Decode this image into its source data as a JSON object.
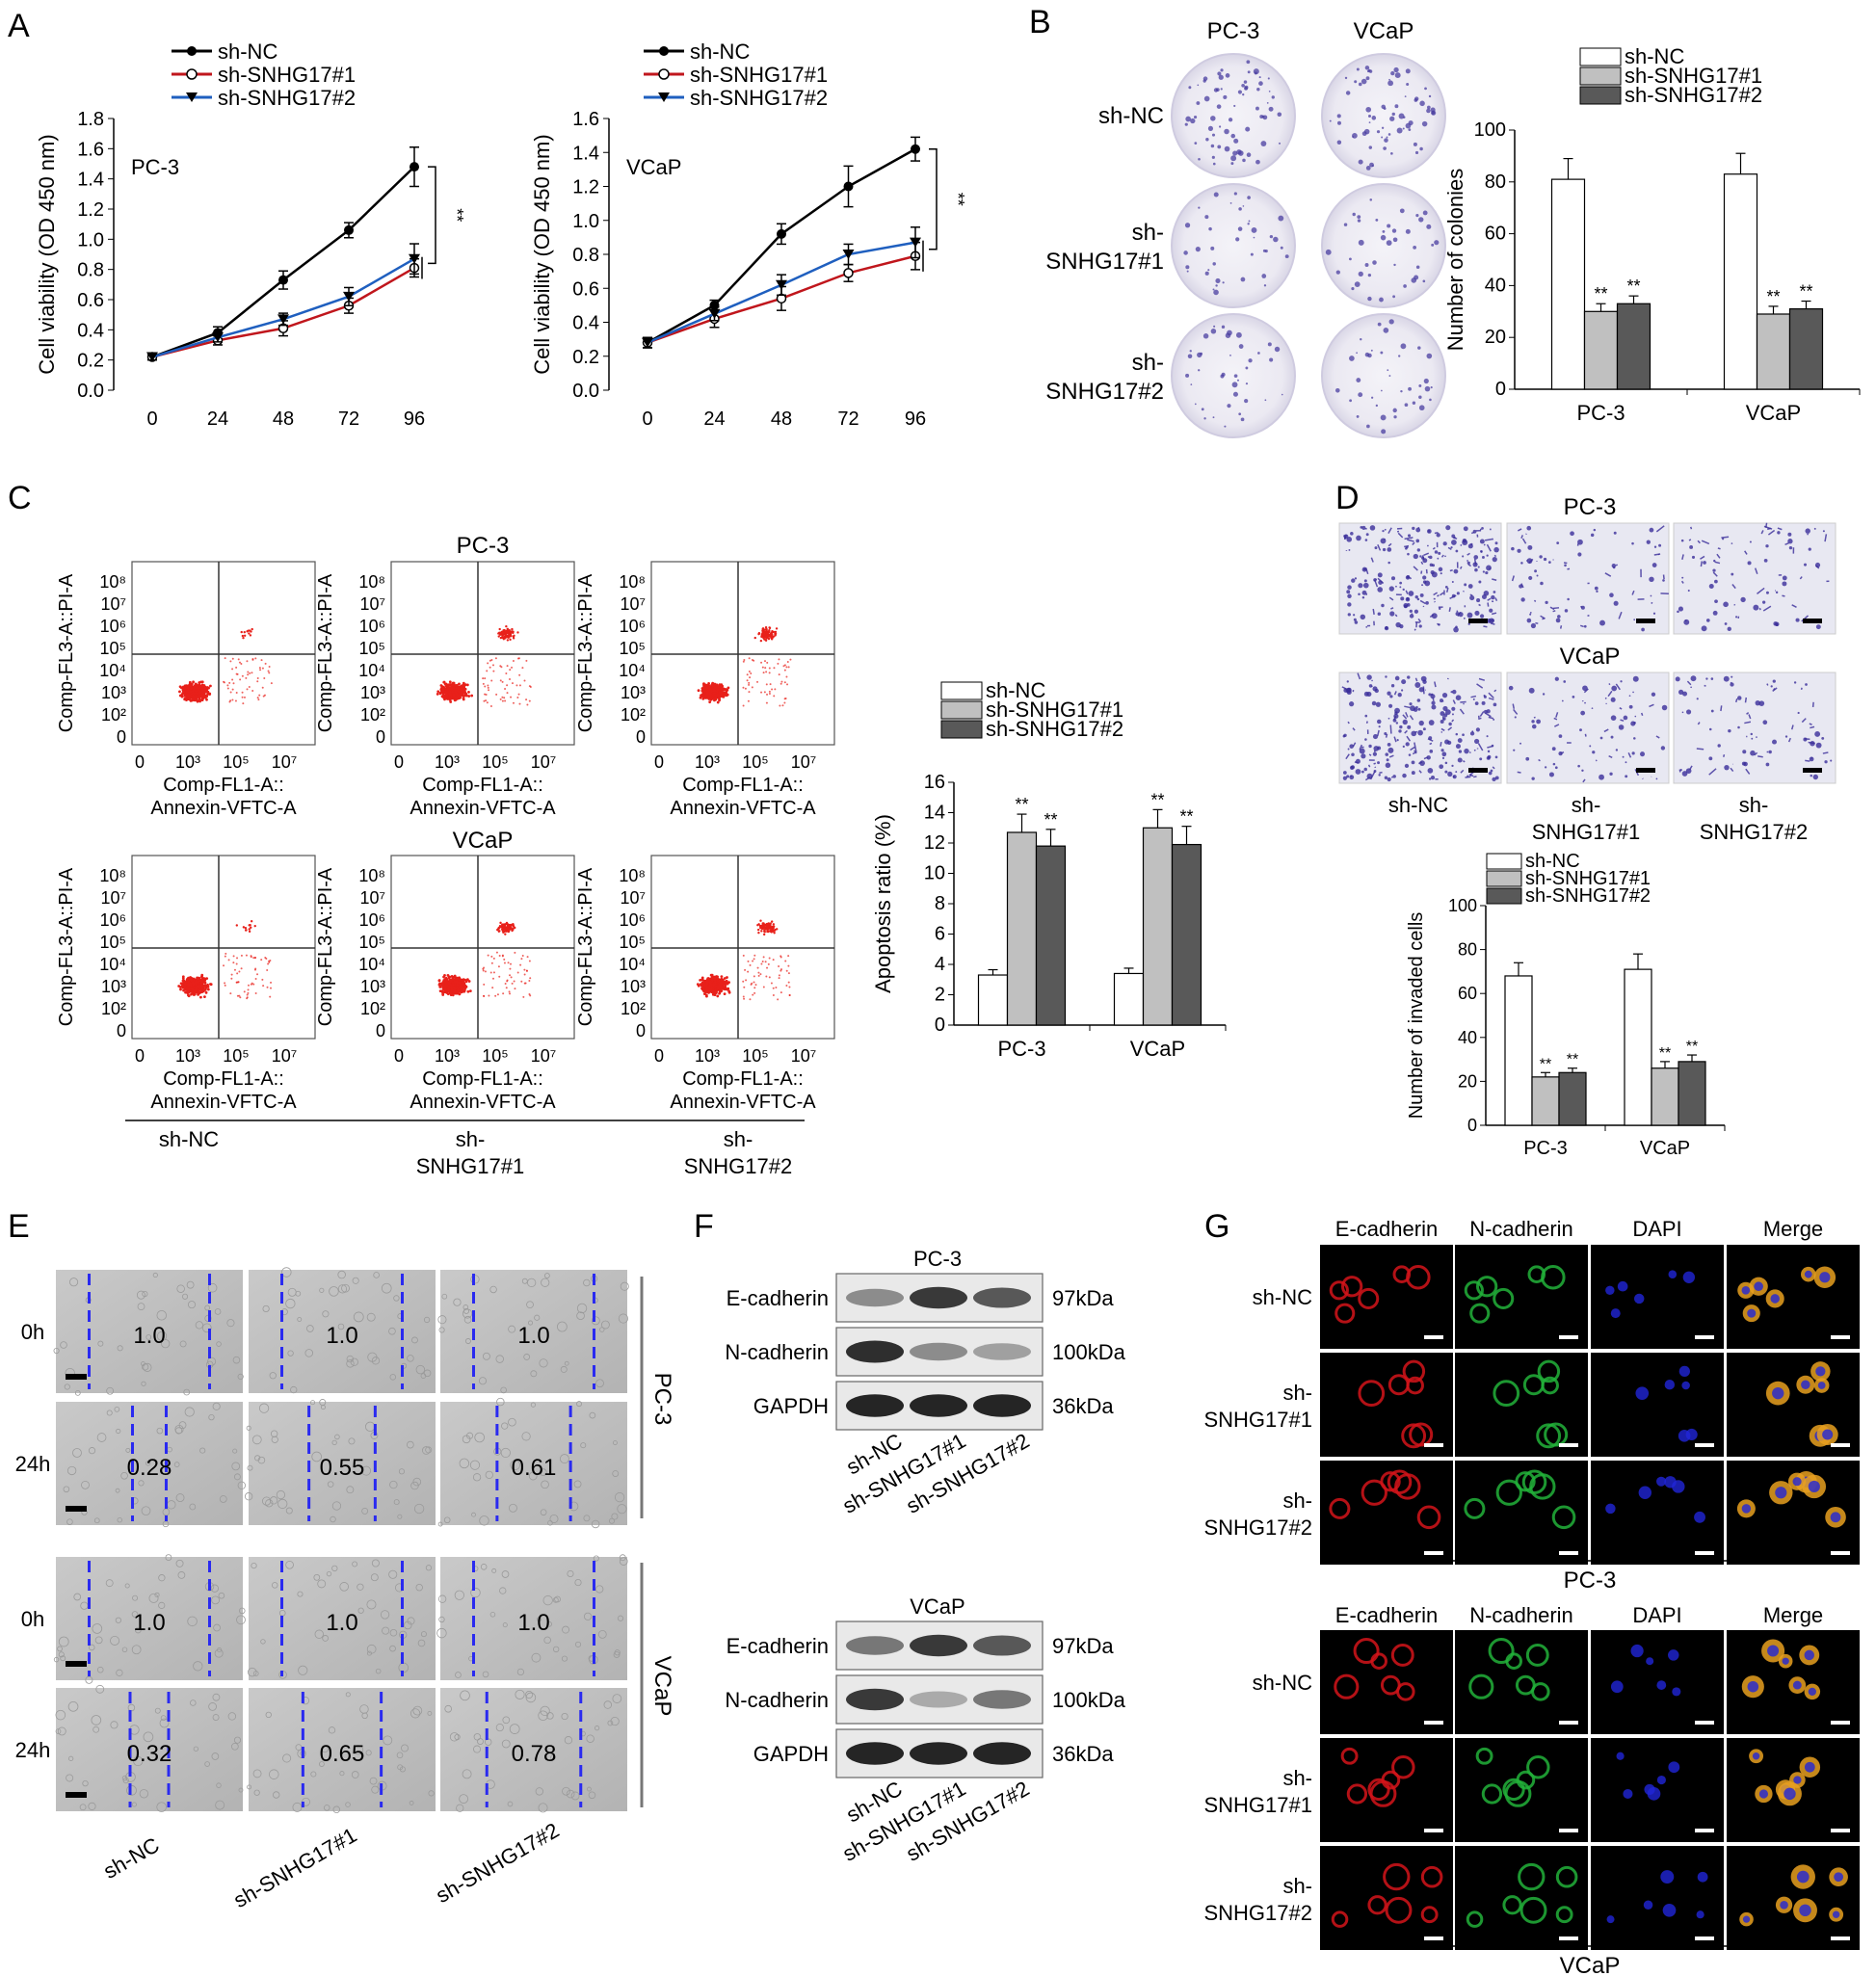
{
  "panels": {
    "A": "A",
    "B": "B",
    "C": "C",
    "D": "D",
    "E": "E",
    "F": "F",
    "G": "G"
  },
  "legend_groups": [
    "sh-NC",
    "sh-SNHG17#1",
    "sh-SNHG17#2"
  ],
  "colors": {
    "sh_NC_line": "#000000",
    "sh_SNHG17_1_line": "#c0161c",
    "sh_SNHG17_2_line": "#1f5fbf",
    "bar_sh_NC": "#ffffff",
    "bar_sh_SNHG17_1": "#c0c0c0",
    "bar_sh_SNHG17_2": "#595959",
    "scratch_line": "#2a2af0",
    "flow_dots": "#e8201a"
  },
  "chart_data": [
    {
      "id": "A-PC3",
      "type": "line",
      "annotation": "PC-3",
      "ylabel": "Cell viability (OD 450 nm)",
      "x": [
        0,
        24,
        48,
        72,
        96
      ],
      "ylim": [
        0,
        1.8
      ],
      "yticks": [
        "0.0",
        "0.2",
        "0.4",
        "0.6",
        "0.8",
        "1.0",
        "1.2",
        "1.4",
        "1.6",
        "1.8"
      ],
      "series": [
        {
          "name": "sh-NC",
          "values": [
            0.22,
            0.38,
            0.73,
            1.06,
            1.48
          ],
          "err": [
            0.02,
            0.04,
            0.06,
            0.05,
            0.13
          ]
        },
        {
          "name": "sh-SNHG17#1",
          "values": [
            0.22,
            0.33,
            0.41,
            0.56,
            0.81
          ],
          "err": [
            0.02,
            0.03,
            0.05,
            0.05,
            0.06
          ]
        },
        {
          "name": "sh-SNHG17#2",
          "values": [
            0.22,
            0.35,
            0.47,
            0.62,
            0.87
          ],
          "err": [
            0.02,
            0.03,
            0.04,
            0.06,
            0.1
          ]
        }
      ],
      "significance": "**"
    },
    {
      "id": "A-VCaP",
      "type": "line",
      "annotation": "VCaP",
      "ylabel": "Cell viability (OD 450 nm)",
      "x": [
        0,
        24,
        48,
        72,
        96
      ],
      "ylim": [
        0,
        1.6
      ],
      "yticks": [
        "0.0",
        "0.2",
        "0.4",
        "0.6",
        "0.8",
        "1.0",
        "1.2",
        "1.4",
        "1.6"
      ],
      "series": [
        {
          "name": "sh-NC",
          "values": [
            0.28,
            0.5,
            0.92,
            1.2,
            1.42
          ],
          "err": [
            0.03,
            0.03,
            0.06,
            0.12,
            0.07
          ]
        },
        {
          "name": "sh-SNHG17#1",
          "values": [
            0.28,
            0.42,
            0.54,
            0.69,
            0.79
          ],
          "err": [
            0.03,
            0.05,
            0.07,
            0.05,
            0.08
          ]
        },
        {
          "name": "sh-SNHG17#2",
          "values": [
            0.28,
            0.45,
            0.62,
            0.8,
            0.87
          ],
          "err": [
            0.03,
            0.04,
            0.06,
            0.06,
            0.09
          ]
        }
      ],
      "significance": "**"
    },
    {
      "id": "B-colonies",
      "type": "bar",
      "ylabel": "Number of colonies",
      "categories": [
        "PC-3",
        "VCaP"
      ],
      "ylim": [
        0,
        100
      ],
      "yticks": [
        "0",
        "20",
        "40",
        "60",
        "80",
        "100"
      ],
      "series": [
        {
          "name": "sh-NC",
          "values": [
            81,
            83
          ],
          "err": [
            8,
            8
          ]
        },
        {
          "name": "sh-SNHG17#1",
          "values": [
            30,
            29
          ],
          "err": [
            3,
            3
          ]
        },
        {
          "name": "sh-SNHG17#2",
          "values": [
            33,
            31
          ],
          "err": [
            3,
            3
          ]
        }
      ],
      "marks": [
        "",
        "**",
        "**"
      ]
    },
    {
      "id": "C-apoptosis",
      "type": "bar",
      "ylabel": "Apoptosis ratio (%)",
      "categories": [
        "PC-3",
        "VCaP"
      ],
      "ylim": [
        0,
        16
      ],
      "yticks": [
        "0",
        "2",
        "4",
        "6",
        "8",
        "10",
        "12",
        "14",
        "16"
      ],
      "series": [
        {
          "name": "sh-NC",
          "values": [
            3.3,
            3.4
          ],
          "err": [
            0.35,
            0.35
          ]
        },
        {
          "name": "sh-SNHG17#1",
          "values": [
            12.7,
            13.0
          ],
          "err": [
            1.2,
            1.2
          ]
        },
        {
          "name": "sh-SNHG17#2",
          "values": [
            11.8,
            11.9
          ],
          "err": [
            1.1,
            1.2
          ]
        }
      ],
      "marks": [
        "",
        "**",
        "**"
      ]
    },
    {
      "id": "D-invasion",
      "type": "bar",
      "ylabel": "Number of invaded cells",
      "categories": [
        "PC-3",
        "VCaP"
      ],
      "ylim": [
        0,
        100
      ],
      "yticks": [
        "0",
        "20",
        "40",
        "60",
        "80",
        "100"
      ],
      "series": [
        {
          "name": "sh-NC",
          "values": [
            68,
            71
          ],
          "err": [
            6,
            7
          ]
        },
        {
          "name": "sh-SNHG17#1",
          "values": [
            22,
            26
          ],
          "err": [
            2,
            3
          ]
        },
        {
          "name": "sh-SNHG17#2",
          "values": [
            24,
            29
          ],
          "err": [
            2,
            3
          ]
        }
      ],
      "marks": [
        "",
        "**",
        "**"
      ]
    }
  ],
  "B_images": {
    "col_titles": [
      "PC-3",
      "VCaP"
    ],
    "row_labels": [
      [
        "sh-NC"
      ],
      [
        "sh-",
        "SNHG17#1"
      ],
      [
        "sh-",
        "SNHG17#2"
      ]
    ]
  },
  "C_flow": {
    "row_titles": [
      "PC-3",
      "VCaP"
    ],
    "y_axis_label": "Comp-FL3-A::PI-A",
    "x_axis_label_1": "Comp-FL1-A::",
    "x_axis_label_2": "Annexin-VFTC-A",
    "y_ticks": [
      "0",
      "10²",
      "10³",
      "10⁴",
      "10⁵",
      "10⁶",
      "10⁷",
      "10⁸"
    ],
    "x_ticks": [
      "0",
      "10³",
      "10⁵",
      "10⁷"
    ],
    "group_labels": [
      [
        "sh-NC"
      ],
      [
        "sh-",
        "SNHG17#1"
      ],
      [
        "sh-",
        "SNHG17#2"
      ]
    ]
  },
  "D_images": {
    "row_titles": [
      "PC-3",
      "VCaP"
    ],
    "col_labels": [
      [
        "sh-NC"
      ],
      [
        "sh-",
        "SNHG17#1"
      ],
      [
        "sh-",
        "SNHG17#2"
      ]
    ]
  },
  "E_scratch": {
    "row_labels": [
      "0h",
      "24h",
      "0h",
      "24h"
    ],
    "side_labels": [
      "PC-3",
      "VCaP"
    ],
    "ratios": [
      [
        "1.0",
        "1.0",
        "1.0"
      ],
      [
        "0.28",
        "0.55",
        "0.61"
      ],
      [
        "1.0",
        "1.0",
        "1.0"
      ],
      [
        "0.32",
        "0.65",
        "0.78"
      ]
    ],
    "gap_fraction": [
      [
        1.0,
        1.0,
        1.0
      ],
      [
        0.28,
        0.55,
        0.61
      ],
      [
        1.0,
        1.0,
        1.0
      ],
      [
        0.32,
        0.65,
        0.78
      ]
    ],
    "col_labels": [
      "sh-NC",
      "sh-SNHG17#1",
      "sh-SNHG17#2"
    ]
  },
  "F_blots": {
    "titles": [
      "PC-3",
      "VCaP"
    ],
    "proteins": [
      "E-cadherin",
      "N-cadherin",
      "GAPDH"
    ],
    "sizes": [
      "97kDa",
      "100kDa",
      "36kDa"
    ],
    "lanes": [
      "sh-NC",
      "sh-SNHG17#1",
      "sh-SNHG17#2"
    ],
    "band_intensity_PC3": [
      [
        0.45,
        0.85,
        0.7
      ],
      [
        0.9,
        0.45,
        0.35
      ],
      [
        0.95,
        0.95,
        0.95
      ]
    ],
    "band_intensity_VCaP": [
      [
        0.55,
        0.85,
        0.7
      ],
      [
        0.85,
        0.3,
        0.55
      ],
      [
        0.95,
        0.95,
        0.95
      ]
    ]
  },
  "G_if": {
    "channels": [
      "E-cadherin",
      "N-cadherin",
      "DAPI",
      "Merge"
    ],
    "row_labels": [
      [
        "sh-NC"
      ],
      [
        "sh-",
        "SNHG17#1"
      ],
      [
        "sh-",
        "SNHG17#2"
      ]
    ],
    "cell_lines": [
      "PC-3",
      "VCaP"
    ]
  }
}
